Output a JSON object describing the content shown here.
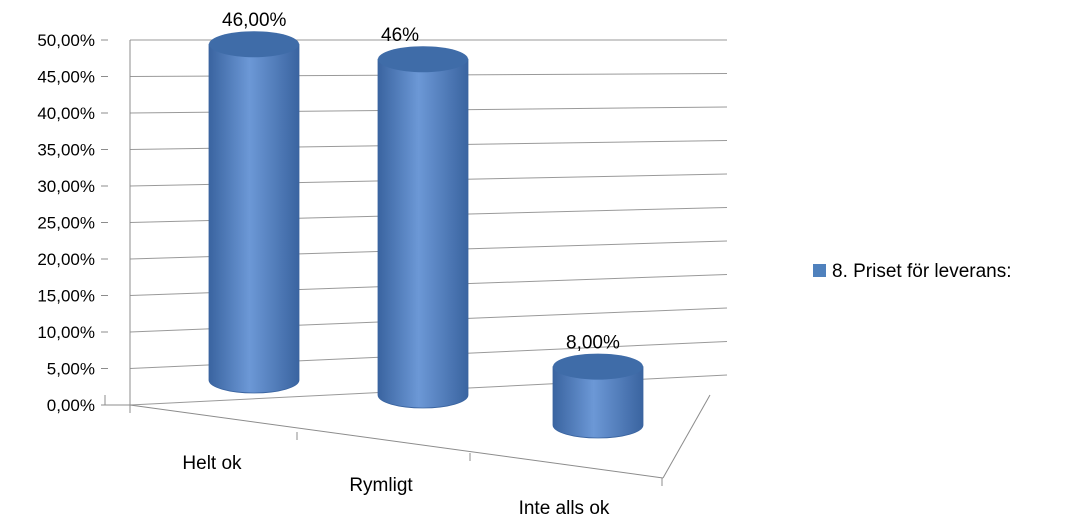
{
  "chart_data": {
    "type": "bar",
    "style": "3d-cylinder",
    "categories": [
      "Helt ok",
      "Rymligt",
      "Inte alls ok"
    ],
    "series": [
      {
        "name": "8. Priset för leverans:",
        "values": [
          46,
          46,
          8
        ],
        "data_labels": [
          "46,00%",
          "46%",
          "8,00%"
        ],
        "color": "#4f81bd"
      }
    ],
    "ylim": [
      0,
      50
    ],
    "yticks": [
      "0,00%",
      "5,00%",
      "10,00%",
      "15,00%",
      "20,00%",
      "25,00%",
      "30,00%",
      "35,00%",
      "40,00%",
      "45,00%",
      "50,00%"
    ],
    "grid": true,
    "legend": "right"
  }
}
